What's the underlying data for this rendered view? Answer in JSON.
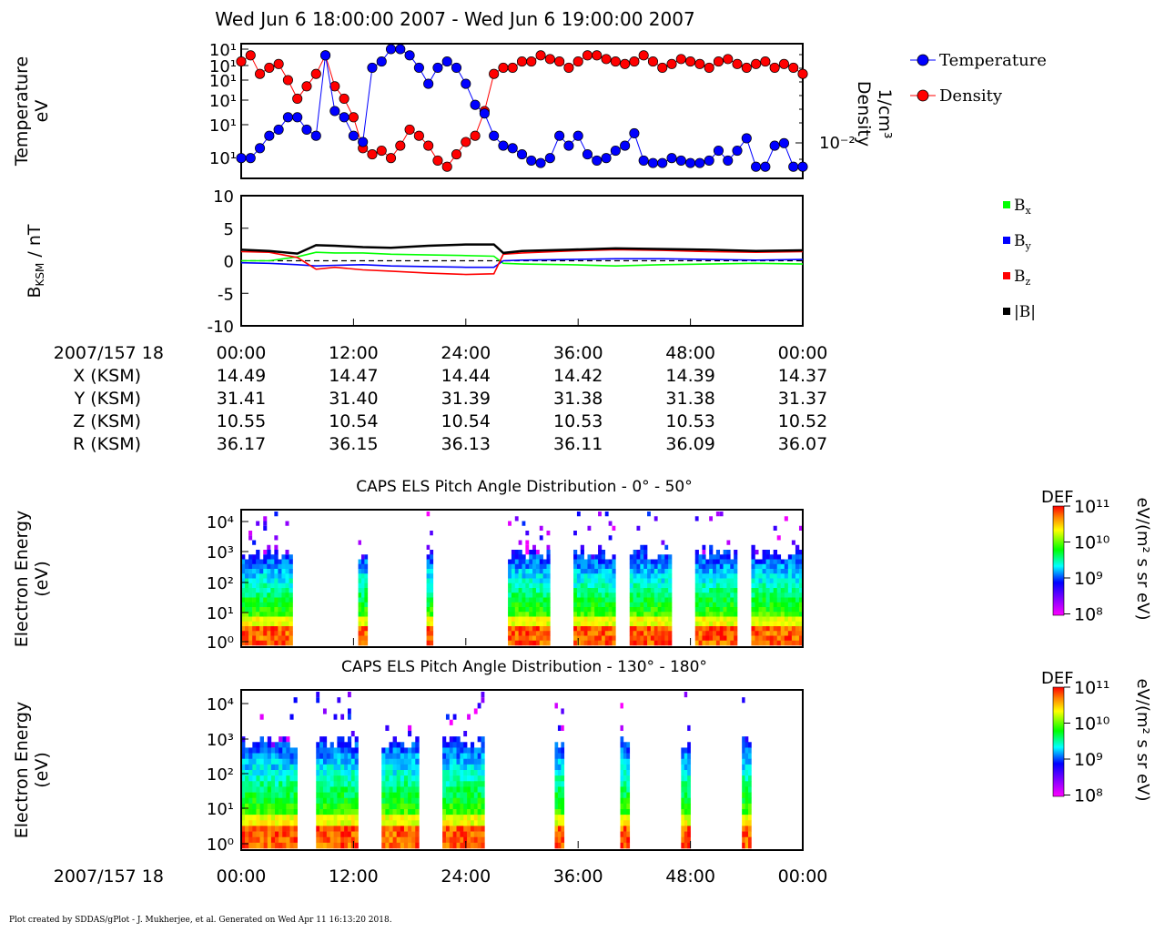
{
  "header": {
    "title": "Wed Jun 6 18:00:00 2007 - Wed Jun 6 19:00:00 2007"
  },
  "footer": {
    "text": "Plot created by SDDAS/gPlot - J. Mukherjee, et al.  Generated on Wed Apr 11 16:13:20 2018."
  },
  "chart_data": [
    {
      "id": "moments",
      "type": "scatter",
      "left_ylabel": "Temperature",
      "left_yunit": "eV",
      "right_ylabel": "Density",
      "right_yunit": "1/cm³",
      "left_ticks": [
        "10¹",
        "10¹",
        "10¹",
        "10¹",
        "10¹",
        "10¹"
      ],
      "right_ticks": [
        "10⁻²"
      ],
      "legend": [
        "Temperature",
        "Density"
      ],
      "legend_position": "right",
      "xlim": [
        0,
        60
      ],
      "colors": {
        "temperature": "#0000ff",
        "density": "#ff0000"
      },
      "series": [
        {
          "name": "Temperature",
          "x": [
            0,
            1,
            2,
            3,
            4,
            5,
            6,
            7,
            8,
            9,
            10,
            11,
            12,
            13,
            14,
            15,
            16,
            17,
            18,
            19,
            20,
            21,
            22,
            23,
            24,
            25,
            26,
            27,
            28,
            29,
            30,
            31,
            32,
            33,
            34,
            35,
            36,
            37,
            38,
            39,
            40,
            41,
            42,
            43,
            44,
            45,
            46,
            47,
            48,
            49,
            50,
            51,
            52,
            53,
            54,
            55,
            56,
            57,
            58,
            59,
            60
          ],
          "y": [
            0.12,
            0.12,
            0.2,
            0.3,
            0.35,
            0.45,
            0.45,
            0.35,
            0.3,
            0.95,
            0.5,
            0.45,
            0.3,
            0.25,
            0.85,
            0.9,
            1.0,
            1.0,
            0.95,
            0.85,
            0.72,
            0.85,
            0.9,
            0.85,
            0.72,
            0.55,
            0.48,
            0.3,
            0.22,
            0.2,
            0.15,
            0.1,
            0.08,
            0.12,
            0.3,
            0.22,
            0.3,
            0.15,
            0.1,
            0.12,
            0.18,
            0.22,
            0.32,
            0.1,
            0.08,
            0.08,
            0.12,
            0.1,
            0.08,
            0.08,
            0.1,
            0.18,
            0.1,
            0.18,
            0.28,
            0.05,
            0.05,
            0.22,
            0.24,
            0.05,
            0.05
          ]
        },
        {
          "name": "Density",
          "x": [
            0,
            1,
            2,
            3,
            4,
            5,
            6,
            7,
            8,
            9,
            10,
            11,
            12,
            13,
            14,
            15,
            16,
            17,
            18,
            19,
            20,
            21,
            22,
            23,
            24,
            25,
            26,
            27,
            28,
            29,
            30,
            31,
            32,
            33,
            34,
            35,
            36,
            37,
            38,
            39,
            40,
            41,
            42,
            43,
            44,
            45,
            46,
            47,
            48,
            49,
            50,
            51,
            52,
            53,
            54,
            55,
            56,
            57,
            58,
            59,
            60
          ],
          "y": [
            0.9,
            0.95,
            0.8,
            0.85,
            0.88,
            0.75,
            0.6,
            0.7,
            0.8,
            0.95,
            0.7,
            0.6,
            0.45,
            0.2,
            0.15,
            0.18,
            0.12,
            0.22,
            0.35,
            0.3,
            0.22,
            0.1,
            0.05,
            0.15,
            0.25,
            0.3,
            0.5,
            0.8,
            0.85,
            0.85,
            0.9,
            0.9,
            0.95,
            0.92,
            0.9,
            0.85,
            0.9,
            0.95,
            0.95,
            0.92,
            0.9,
            0.88,
            0.9,
            0.95,
            0.9,
            0.85,
            0.88,
            0.92,
            0.9,
            0.88,
            0.85,
            0.9,
            0.92,
            0.88,
            0.85,
            0.88,
            0.9,
            0.85,
            0.88,
            0.85,
            0.8
          ]
        }
      ]
    },
    {
      "id": "magnetometer",
      "type": "line",
      "ylabel": "B",
      "ylabel_sub": "KSM",
      "ylabel_unit": " / nT",
      "ylim": [
        -10,
        10
      ],
      "yticks": [
        "10",
        "5",
        "0",
        "-5",
        "-10"
      ],
      "ytick_values": [
        10,
        5,
        0,
        -5,
        -10
      ],
      "xlim": [
        0,
        60
      ],
      "legend": [
        {
          "name": "B",
          "sub": "x",
          "color": "#00ff00"
        },
        {
          "name": "B",
          "sub": "y",
          "color": "#0000ff"
        },
        {
          "name": "B",
          "sub": "z",
          "color": "#ff0000"
        },
        {
          "name": "|B|",
          "sub": "",
          "color": "#000000"
        }
      ],
      "series": [
        {
          "name": "Bx",
          "color": "#00ff00",
          "x": [
            0,
            3,
            6,
            8,
            10,
            13,
            16,
            20,
            24,
            27,
            28,
            30,
            35,
            40,
            45,
            50,
            55,
            60
          ],
          "y": [
            0,
            0,
            0.6,
            1.3,
            1.2,
            1.2,
            1.0,
            0.9,
            0.8,
            0.7,
            -0.4,
            -0.5,
            -0.6,
            -0.8,
            -0.6,
            -0.5,
            -0.4,
            -0.5
          ]
        },
        {
          "name": "By",
          "color": "#0000ff",
          "x": [
            0,
            3,
            6,
            8,
            10,
            13,
            16,
            20,
            24,
            27,
            28,
            30,
            35,
            40,
            45,
            50,
            55,
            60
          ],
          "y": [
            -0.3,
            -0.4,
            -0.6,
            -0.8,
            -0.7,
            -0.6,
            -0.8,
            -0.9,
            -1.0,
            -1.0,
            0,
            0.1,
            0.2,
            0.3,
            0.3,
            0.2,
            0.1,
            0.2
          ]
        },
        {
          "name": "Bz",
          "color": "#ff0000",
          "x": [
            0,
            3,
            6,
            8,
            10,
            13,
            16,
            20,
            24,
            27,
            28,
            30,
            35,
            40,
            45,
            50,
            55,
            60
          ],
          "y": [
            1.4,
            1.3,
            0.5,
            -1.3,
            -1.0,
            -1.4,
            -1.6,
            -1.9,
            -2.1,
            -2.0,
            1.0,
            1.2,
            1.5,
            1.7,
            1.6,
            1.4,
            1.3,
            1.4
          ]
        },
        {
          "name": "|B|",
          "color": "#000000",
          "x": [
            0,
            3,
            6,
            8,
            10,
            13,
            16,
            20,
            24,
            27,
            28,
            30,
            35,
            40,
            45,
            50,
            55,
            60
          ],
          "y": [
            1.7,
            1.5,
            1.1,
            2.4,
            2.3,
            2.1,
            2.0,
            2.3,
            2.5,
            2.5,
            1.2,
            1.5,
            1.7,
            1.9,
            1.8,
            1.7,
            1.5,
            1.6
          ]
        }
      ],
      "zero_line": 0
    },
    {
      "id": "pad-0-50",
      "type": "heatmap",
      "title": "CAPS ELS Pitch Angle Distribution - 0° - 50°",
      "ylabel": "Electron Energy",
      "yunit": "(eV)",
      "yticks": [
        "10⁴",
        "10³",
        "10²",
        "10¹",
        "10⁰"
      ],
      "xlim": [
        0,
        60
      ],
      "data_intervals": [
        [
          0,
          5.5
        ],
        [
          12.5,
          13.5
        ],
        [
          19.8,
          20.5
        ],
        [
          28.5,
          33
        ],
        [
          35.5,
          40
        ],
        [
          41.5,
          46
        ],
        [
          48.5,
          53
        ],
        [
          54.5,
          60
        ]
      ],
      "colorbar": {
        "label": "DEF",
        "unit": "eV/(m² s sr eV)",
        "ticks": [
          "10¹¹",
          "10¹⁰",
          "10⁹",
          "10⁸"
        ]
      }
    },
    {
      "id": "pad-130-180",
      "type": "heatmap",
      "title": "CAPS ELS Pitch Angle Distribution - 130° - 180°",
      "ylabel": "Electron Energy",
      "yunit": "(eV)",
      "yticks": [
        "10⁴",
        "10³",
        "10²",
        "10¹",
        "10⁰"
      ],
      "xlim": [
        0,
        60
      ],
      "data_intervals": [
        [
          0,
          6
        ],
        [
          8,
          12.5
        ],
        [
          15,
          19
        ],
        [
          21.5,
          26
        ],
        [
          33.5,
          34.5
        ],
        [
          40.5,
          41.5
        ],
        [
          47,
          48
        ],
        [
          53.5,
          54.5
        ]
      ],
      "colorbar": {
        "label": "DEF",
        "unit": "eV/(m² s sr eV)",
        "ticks": [
          "10¹¹",
          "10¹⁰",
          "10⁹",
          "10⁸"
        ]
      }
    }
  ],
  "time_axis": {
    "row_label": "2007/157 18",
    "ticks": [
      "00:00",
      "12:00",
      "24:00",
      "36:00",
      "48:00",
      "00:00"
    ]
  },
  "ephemeris": [
    {
      "label": "X (KSM)",
      "values": [
        "14.49",
        "14.47",
        "14.44",
        "14.42",
        "14.39",
        "14.37"
      ]
    },
    {
      "label": "Y (KSM)",
      "values": [
        "31.41",
        "31.40",
        "31.39",
        "31.38",
        "31.38",
        "31.37"
      ]
    },
    {
      "label": "Z (KSM)",
      "values": [
        "10.55",
        "10.54",
        "10.54",
        "10.53",
        "10.53",
        "10.52"
      ]
    },
    {
      "label": "R (KSM)",
      "values": [
        "36.17",
        "36.15",
        "36.13",
        "36.11",
        "36.09",
        "36.07"
      ]
    }
  ]
}
